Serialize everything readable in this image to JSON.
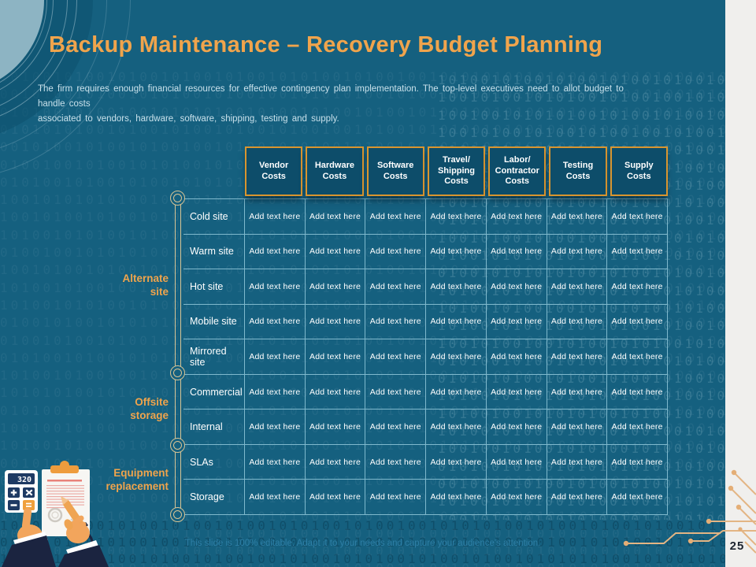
{
  "theme": {
    "slide_bg": "#15607F",
    "accent_orange": "#F0A44C",
    "header_cell_bg": "#0D4D6A",
    "header_cell_border": "#D9952F",
    "grid_line": "#7FB9CD",
    "subtitle_text": "#C9E1EB",
    "timeline_tan": "#D8C494",
    "footer_text": "#2E7FA6",
    "side_strip_bg": "#F0EFED",
    "page_number_color": "#1D2430",
    "corner_disc": "#8DB4C3",
    "circuit_line": "#E3B584"
  },
  "header": {
    "title": "Backup Maintenance – Recovery Budget Planning",
    "subtitle_line1": "The firm requires enough financial resources for effective contingency plan implementation. The top-level executives need to allot budget to handle costs",
    "subtitle_line2": "associated to vendors, hardware, software, shipping, testing and supply."
  },
  "table": {
    "placeholder": "Add text here",
    "columns": [
      "Vendor\nCosts",
      "Hardware\nCosts",
      "Software\nCosts",
      "Travel/\nShipping\nCosts",
      "Labor/\nContractor\nCosts",
      "Testing\nCosts",
      "Supply\nCosts"
    ],
    "rows": [
      "Cold site",
      "Warm site",
      "Hot site",
      "Mobile site",
      "Mirrored site",
      "Commercial",
      "Internal",
      "SLAs",
      "Storage"
    ]
  },
  "groups": [
    {
      "label": "Alternate\nsite"
    },
    {
      "label": "Offsite\nstorage"
    },
    {
      "label": "Equipment\nreplacement"
    }
  ],
  "footer": {
    "note": "This slide is 100% editable. Adapt it to your needs and capture your audience's attention.",
    "page_number": "25"
  },
  "illustration": {
    "calculator_display": "320"
  },
  "background": {
    "binary_sample": "1010010100101001010010100101010010100100101010100101001010010100101001001010010101001010010100101010"
  }
}
